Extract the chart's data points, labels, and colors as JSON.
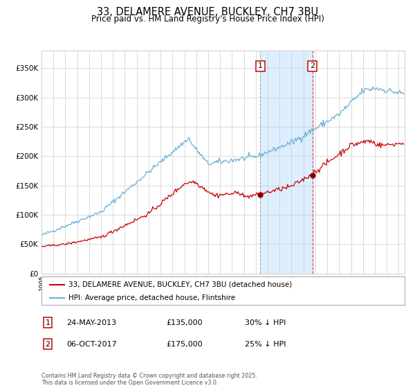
{
  "title": "33, DELAMERE AVENUE, BUCKLEY, CH7 3BU",
  "subtitle": "Price paid vs. HM Land Registry's House Price Index (HPI)",
  "legend_line1": "33, DELAMERE AVENUE, BUCKLEY, CH7 3BU (detached house)",
  "legend_line2": "HPI: Average price, detached house, Flintshire",
  "footnote": "Contains HM Land Registry data © Crown copyright and database right 2025.\nThis data is licensed under the Open Government Licence v3.0.",
  "marker1_date": "24-MAY-2013",
  "marker1_price": 135000,
  "marker1_label": "30% ↓ HPI",
  "marker2_date": "06-OCT-2017",
  "marker2_price": 175000,
  "marker2_label": "25% ↓ HPI",
  "hpi_color": "#6aaed6",
  "price_color": "#cc0000",
  "marker_color": "#8b0000",
  "background_color": "#ffffff",
  "grid_color": "#cccccc",
  "shade_color": "#ddeeff",
  "ylim": [
    0,
    380000
  ],
  "yticks": [
    0,
    50000,
    100000,
    150000,
    200000,
    250000,
    300000,
    350000
  ],
  "xlim_start": 1995.0,
  "xlim_end": 2025.5,
  "marker1_x": 2013.375,
  "marker2_x": 2017.75
}
